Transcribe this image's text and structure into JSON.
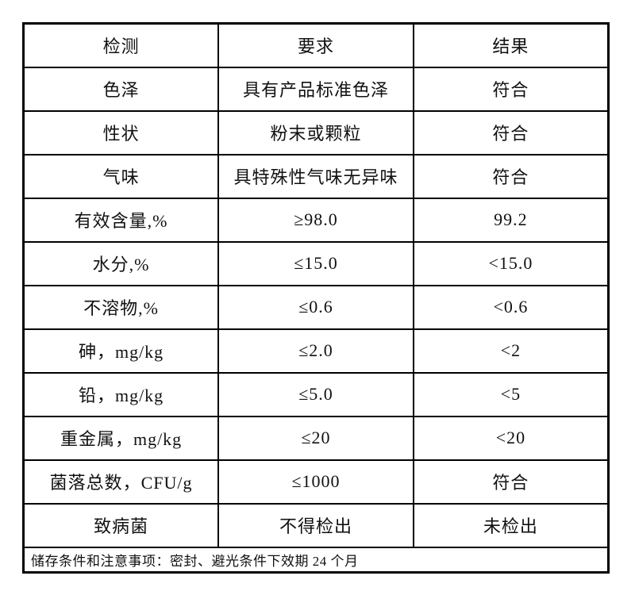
{
  "table": {
    "headers": [
      "检测",
      "要求",
      "结果"
    ],
    "rows": [
      [
        "色泽",
        "具有产品标准色泽",
        "符合"
      ],
      [
        "性状",
        "粉末或颗粒",
        "符合"
      ],
      [
        "气味",
        "具特殊性气味无异味",
        "符合"
      ],
      [
        "有效含量,%",
        "≥98.0",
        "99.2"
      ],
      [
        "水分,%",
        "≤15.0",
        "<15.0"
      ],
      [
        "不溶物,%",
        "≤0.6",
        "<0.6"
      ],
      [
        "砷，mg/kg",
        "≤2.0",
        "<2"
      ],
      [
        "铅，mg/kg",
        "≤5.0",
        "<5"
      ],
      [
        "重金属，mg/kg",
        "≤20",
        "<20"
      ],
      [
        "菌落总数，CFU/g",
        "≤1000",
        "符合"
      ],
      [
        "致病菌",
        "不得检出",
        "未检出"
      ]
    ],
    "footer_note": "储存条件和注意事项：密封、避光条件下效期 24 个月"
  },
  "colors": {
    "border": "#000000",
    "text": "#111111",
    "background": "#ffffff"
  }
}
